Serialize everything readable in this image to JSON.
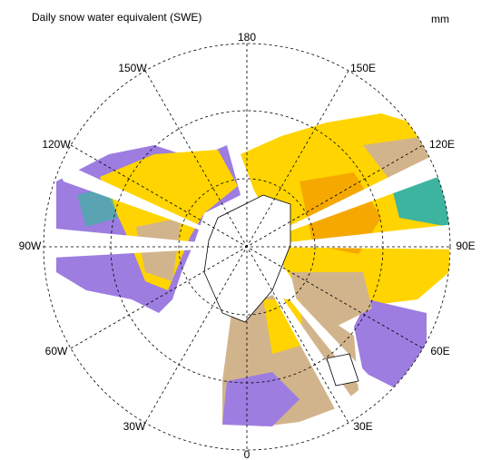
{
  "title": "Daily snow water equivalent (SWE)",
  "units": "mm",
  "longitude_labels": [
    "180",
    "150E",
    "120E",
    "90E",
    "60E",
    "30E",
    "0",
    "30W",
    "60W",
    "90W",
    "120W",
    "150W"
  ]
}
